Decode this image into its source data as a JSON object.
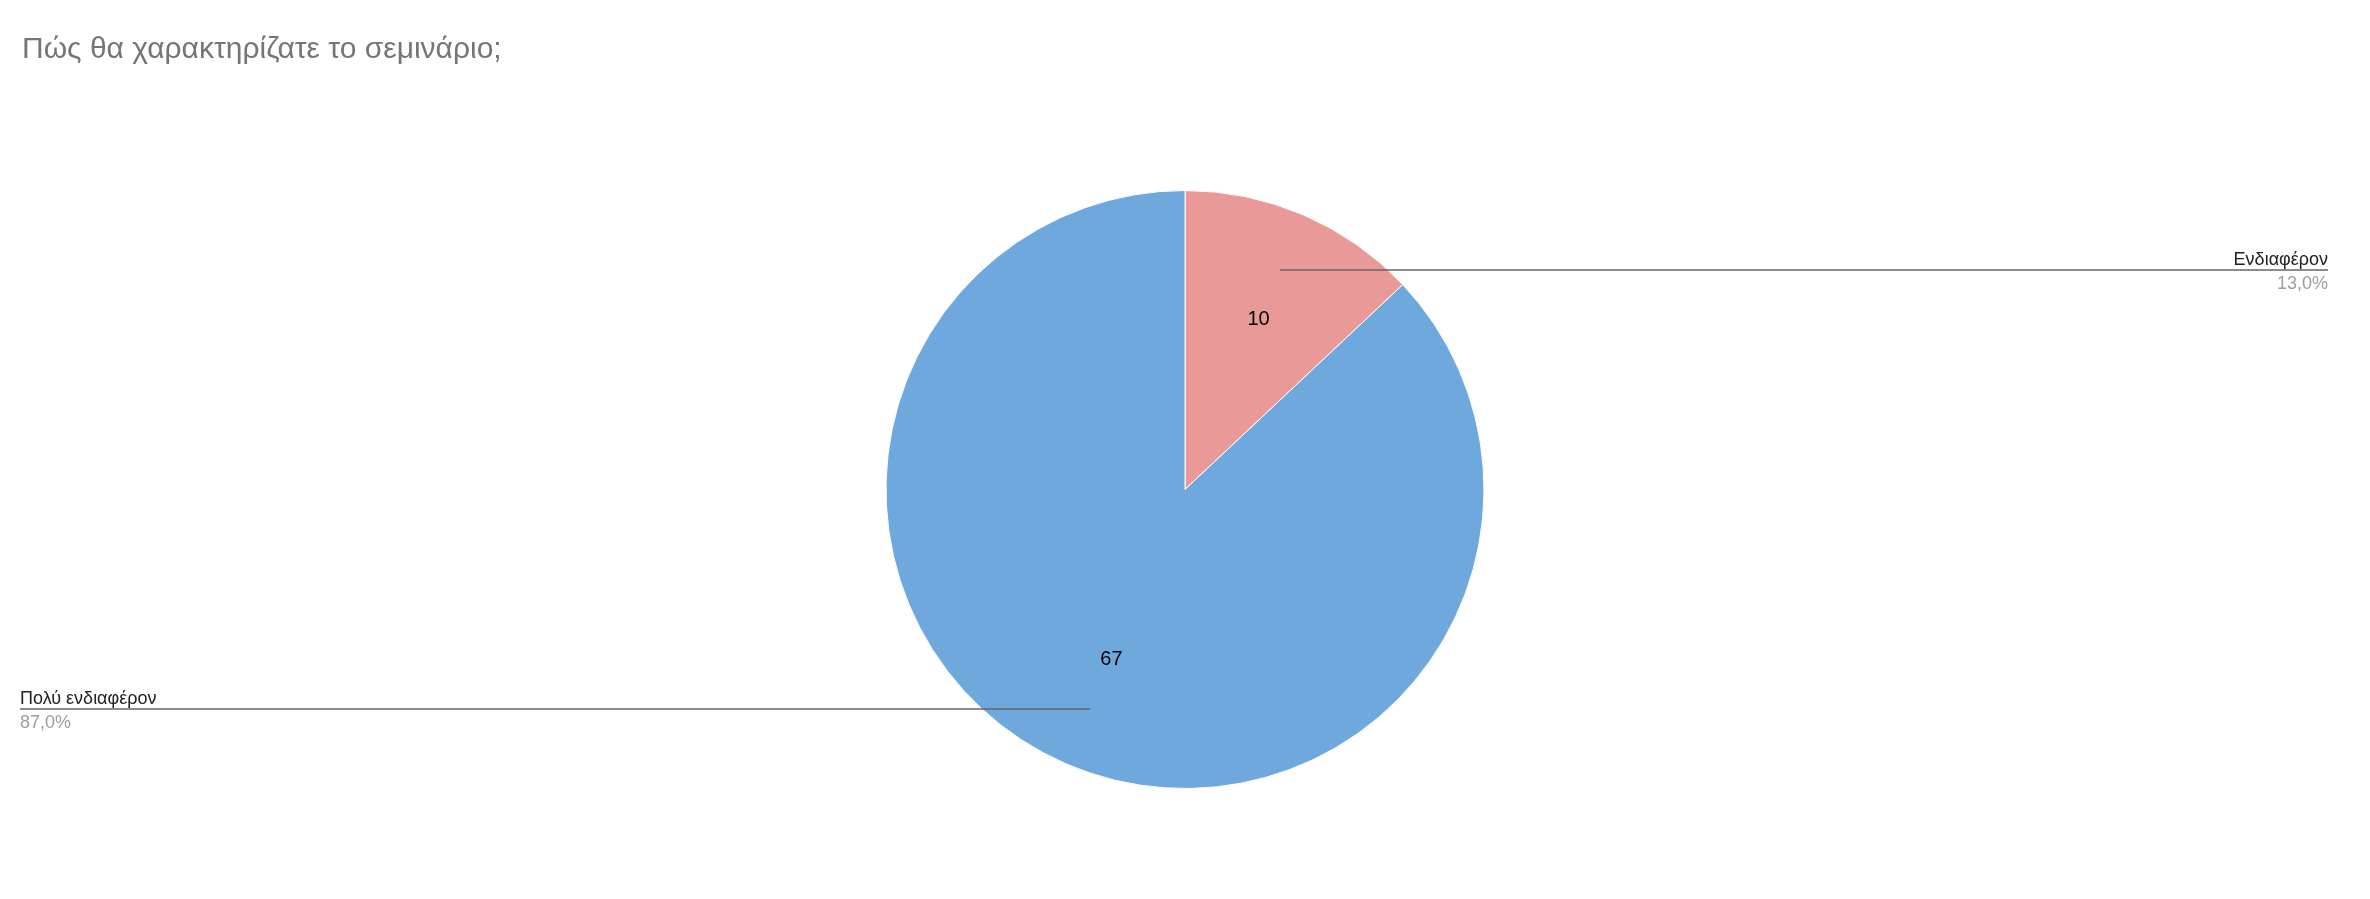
{
  "chart_data": {
    "type": "pie",
    "title": "Πώς θα χαρακτηρίζατε το σεμινάριο;",
    "categories": [
      "Ενδιαφέρον",
      "Πολύ ενδιαφέρον"
    ],
    "values": [
      10,
      67
    ],
    "colors": [
      "#e99a98",
      "#6fa8dc"
    ],
    "data_labels": true,
    "legend": false,
    "annotations": [
      "13,0%",
      "87,0%"
    ]
  }
}
